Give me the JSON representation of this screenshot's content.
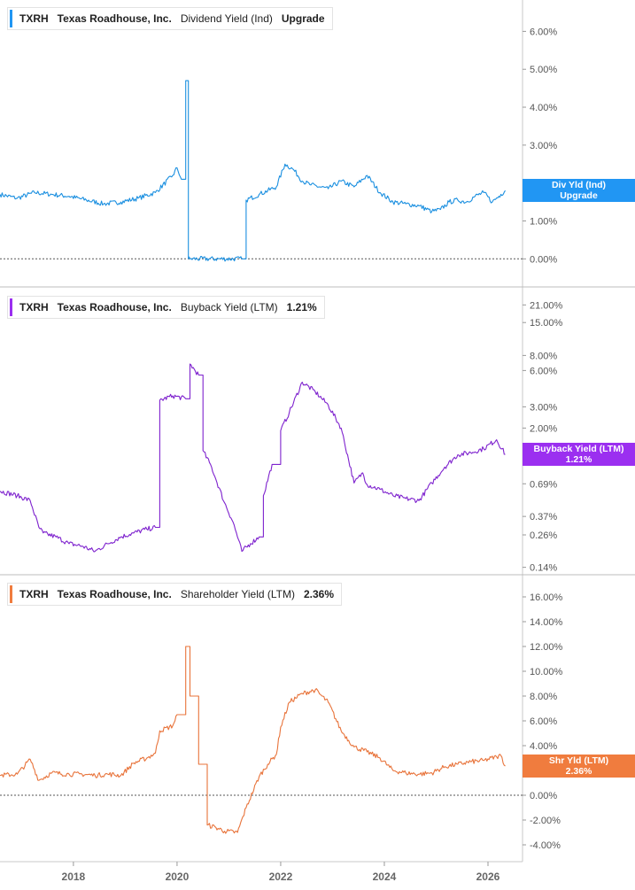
{
  "chart_data": [
    {
      "type": "line",
      "ticker": "TXRH",
      "company": "Texas Roadhouse, Inc.",
      "metric": "Dividend Yield (Ind)",
      "legend_value": "Upgrade",
      "tag": [
        "Div Yld (Ind)",
        "Upgrade"
      ],
      "color": "#1a8fe0",
      "tag_color": "#2196f3",
      "scale": "linear",
      "ylim": [
        -0.6,
        6.5
      ],
      "yticks": [
        0,
        1,
        2,
        3,
        4,
        5,
        6
      ],
      "ytick_labels": [
        "0.00%",
        "1.00%",
        "2.00%",
        "3.00%",
        "4.00%",
        "5.00%",
        "6.00%"
      ],
      "reference_line": 0,
      "x": [
        "2016-08",
        "2016-12",
        "2017-04",
        "2017-08",
        "2017-12",
        "2018-04",
        "2018-08",
        "2018-12",
        "2019-04",
        "2019-08",
        "2019-12",
        "2020-01",
        "2020-02",
        "2020-03",
        "2020-03-20",
        "2020-04",
        "2021-04",
        "2021-05",
        "2021-08",
        "2021-12",
        "2022-02",
        "2022-04",
        "2022-06",
        "2022-08",
        "2022-12",
        "2023-03",
        "2023-06",
        "2023-09",
        "2023-12",
        "2024-03",
        "2024-06",
        "2024-09",
        "2024-12",
        "2025-02",
        "2025-04",
        "2025-06",
        "2025-08",
        "2025-10",
        "2025-12",
        "2026-02",
        "2026-04",
        "2026-05"
      ],
      "values": [
        1.7,
        1.6,
        1.75,
        1.7,
        1.65,
        1.55,
        1.45,
        1.5,
        1.6,
        1.75,
        2.2,
        2.4,
        2.1,
        4.7,
        0,
        0,
        0,
        1.55,
        1.7,
        1.9,
        2.5,
        2.35,
        2.05,
        1.95,
        1.85,
        2.05,
        1.9,
        2.2,
        1.75,
        1.5,
        1.45,
        1.4,
        1.25,
        1.3,
        1.5,
        1.55,
        1.5,
        1.65,
        1.75,
        1.5,
        1.7,
        1.8
      ]
    },
    {
      "type": "line",
      "ticker": "TXRH",
      "company": "Texas Roadhouse, Inc.",
      "metric": "Buyback Yield (LTM)",
      "legend_value": "1.21%",
      "tag": [
        "Buyback Yield (LTM)",
        "1.21%"
      ],
      "color": "#7e22ce",
      "tag_color": "#9b2ff0",
      "scale": "log",
      "ylim": [
        0.13,
        25
      ],
      "yticks": [
        0.14,
        0.26,
        0.37,
        0.69,
        1.21,
        2,
        3,
        6,
        8,
        15,
        21
      ],
      "ytick_labels": [
        "0.14%",
        "0.26%",
        "0.37%",
        "0.69%",
        "1.21%",
        "2.00%",
        "3.00%",
        "6.00%",
        "8.00%",
        "15.00%",
        "21.00%"
      ],
      "x": [
        "2016-08",
        "2016-12",
        "2017-03",
        "2017-05",
        "2017-06",
        "2017-09",
        "2017-12",
        "2018-03",
        "2018-06",
        "2018-09",
        "2018-12",
        "2019-03",
        "2019-06",
        "2019-08",
        "2019-09",
        "2019-12",
        "2020-03",
        "2020-04",
        "2020-06",
        "2020-07",
        "2020-09",
        "2020-10",
        "2020-12",
        "2021-02",
        "2021-04",
        "2021-06",
        "2021-08",
        "2021-09",
        "2021-11",
        "2022-01",
        "2022-03",
        "2022-06",
        "2022-09",
        "2022-12",
        "2023-03",
        "2023-06",
        "2023-08",
        "2023-09",
        "2023-12",
        "2024-03",
        "2024-06",
        "2024-09",
        "2024-12",
        "2025-03",
        "2025-06",
        "2025-09",
        "2025-12",
        "2026-03",
        "2026-05"
      ],
      "values": [
        0.6,
        0.55,
        0.5,
        0.3,
        0.27,
        0.25,
        0.22,
        0.21,
        0.19,
        0.22,
        0.25,
        0.27,
        0.29,
        0.3,
        3.4,
        3.7,
        3.5,
        6.8,
        5.5,
        1.3,
        0.95,
        0.75,
        0.48,
        0.33,
        0.19,
        0.22,
        0.25,
        0.55,
        1.0,
        1.9,
        2.7,
        4.8,
        4.0,
        3.1,
        2.0,
        0.7,
        0.85,
        0.68,
        0.62,
        0.55,
        0.52,
        0.5,
        0.7,
        0.95,
        1.2,
        1.25,
        1.35,
        1.6,
        1.21
      ]
    },
    {
      "type": "line",
      "ticker": "TXRH",
      "company": "Texas Roadhouse, Inc.",
      "metric": "Shareholder Yield (LTM)",
      "legend_value": "2.36%",
      "tag": [
        "Shr Yld (LTM)",
        "2.36%"
      ],
      "color": "#e8733a",
      "tag_color": "#f07c3e",
      "scale": "linear",
      "ylim": [
        -5,
        17
      ],
      "yticks": [
        -4,
        -2,
        0,
        2,
        4,
        6,
        8,
        10,
        12,
        14,
        16
      ],
      "ytick_labels": [
        "-4.00%",
        "-2.00%",
        "0.00%",
        "2.00%",
        "4.00%",
        "6.00%",
        "8.00%",
        "10.00%",
        "12.00%",
        "14.00%",
        "16.00%"
      ],
      "reference_line": 0,
      "x": [
        "2016-08",
        "2016-12",
        "2017-03",
        "2017-05",
        "2017-08",
        "2017-12",
        "2018-03",
        "2018-06",
        "2018-09",
        "2018-12",
        "2019-03",
        "2019-06",
        "2019-08",
        "2019-09",
        "2019-12",
        "2020-01",
        "2020-03",
        "2020-04",
        "2020-06",
        "2020-08",
        "2020-10",
        "2020-12",
        "2021-03",
        "2021-05",
        "2021-08",
        "2021-10",
        "2021-12",
        "2022-01",
        "2022-03",
        "2022-06",
        "2022-09",
        "2022-12",
        "2023-03",
        "2023-06",
        "2023-09",
        "2023-12",
        "2024-03",
        "2024-06",
        "2024-09",
        "2024-12",
        "2025-03",
        "2025-06",
        "2025-09",
        "2025-12",
        "2026-03",
        "2026-04",
        "2026-05"
      ],
      "values": [
        1.6,
        1.7,
        2.9,
        1.2,
        1.8,
        1.7,
        1.7,
        1.6,
        1.7,
        1.6,
        2.6,
        3.0,
        3.4,
        5.2,
        5.6,
        6.5,
        12.0,
        8.0,
        2.5,
        -2.4,
        -2.6,
        -2.9,
        -3.0,
        -1.0,
        1.5,
        2.5,
        3.3,
        5.5,
        7.5,
        8.2,
        8.5,
        7.5,
        5.2,
        3.9,
        3.5,
        3.0,
        2.0,
        1.8,
        1.7,
        1.8,
        2.3,
        2.5,
        2.7,
        2.8,
        3.1,
        3.2,
        2.36
      ]
    }
  ],
  "x_axis": {
    "ticks": [
      "2018",
      "2020",
      "2022",
      "2024",
      "2026"
    ],
    "range": [
      "2016-08",
      "2026-09"
    ]
  }
}
